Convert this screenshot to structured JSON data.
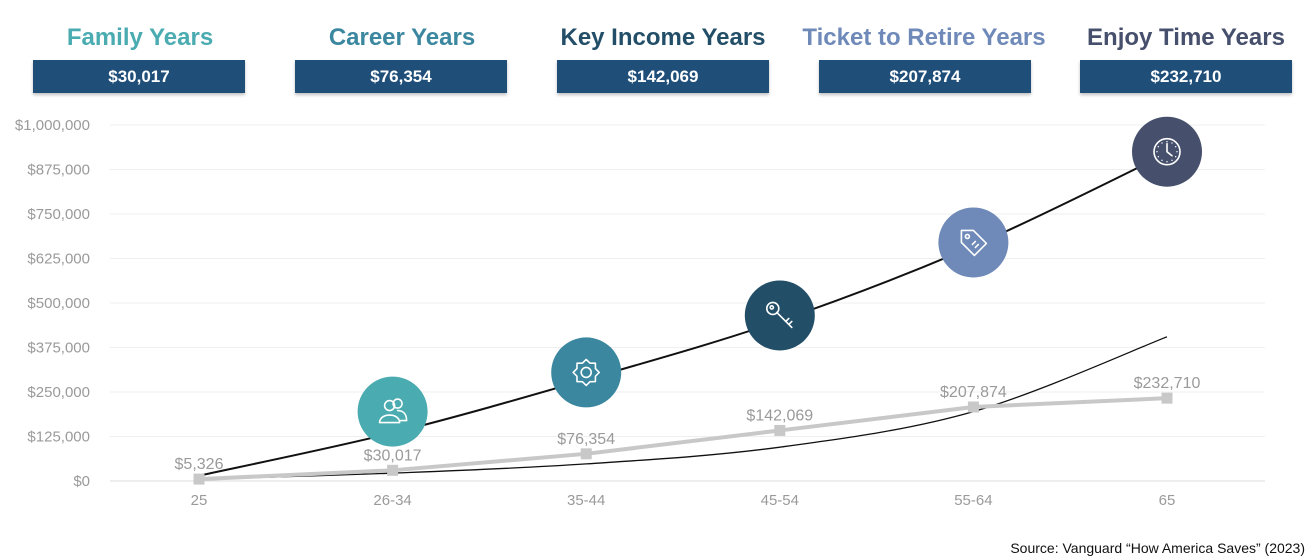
{
  "stages": [
    {
      "title": "Family Years",
      "value": "$30,017",
      "color": "#4aabb0",
      "icon": "people-icon"
    },
    {
      "title": "Career Years",
      "value": "$76,354",
      "color": "#3b87a0",
      "icon": "gear-icon"
    },
    {
      "title": "Key Income Years",
      "value": "$142,069",
      "color": "#234e68",
      "icon": "key-icon"
    },
    {
      "title": "Ticket to Retire Years",
      "value": "$207,874",
      "color": "#6f8ab9",
      "icon": "tag-icon"
    },
    {
      "title": "Enjoy Time Years",
      "value": "$232,710",
      "color": "#46506c",
      "icon": "clock-icon"
    }
  ],
  "source": "Source: Vanguard “How America Saves” (2023)",
  "chart_data": {
    "type": "line",
    "categories": [
      "25",
      "26-34",
      "35-44",
      "45-54",
      "55-64",
      "65"
    ],
    "ylim": [
      0,
      1000000
    ],
    "yticks": [
      0,
      125000,
      250000,
      375000,
      500000,
      625000,
      750000,
      875000,
      1000000
    ],
    "ytick_labels": [
      "$0",
      "$125,000",
      "$250,000",
      "$375,000",
      "$500,000",
      "$625,000",
      "$750,000",
      "$875,000",
      "$1,000,000"
    ],
    "grid": true,
    "series": [
      {
        "values": [
          5326,
          30017,
          76354,
          142069,
          207874,
          232710
        ],
        "labels": [
          "$5,326",
          "$30,017",
          "$76,354",
          "$142,069",
          "$207,874",
          "$232,710"
        ],
        "color": "#c8c8c8"
      }
    ],
    "trend_curves": [
      {
        "values": [
          15000,
          135000,
          285000,
          450000,
          660000,
          920000
        ],
        "color": "#111111"
      },
      {
        "values": [
          5000,
          22000,
          48000,
          95000,
          195000,
          405000
        ],
        "color": "#111111"
      }
    ],
    "icon_markers": [
      {
        "category_index": 1,
        "value": 195000,
        "icon": "people-icon",
        "color": "#4aabb0"
      },
      {
        "category_index": 2,
        "value": 305000,
        "icon": "gear-icon",
        "color": "#3b87a0"
      },
      {
        "category_index": 3,
        "value": 465000,
        "icon": "key-icon",
        "color": "#234e68"
      },
      {
        "category_index": 4,
        "value": 670000,
        "icon": "tag-icon",
        "color": "#6f8ab9"
      },
      {
        "category_index": 5,
        "value": 925000,
        "icon": "clock-icon",
        "color": "#46506c"
      }
    ]
  }
}
